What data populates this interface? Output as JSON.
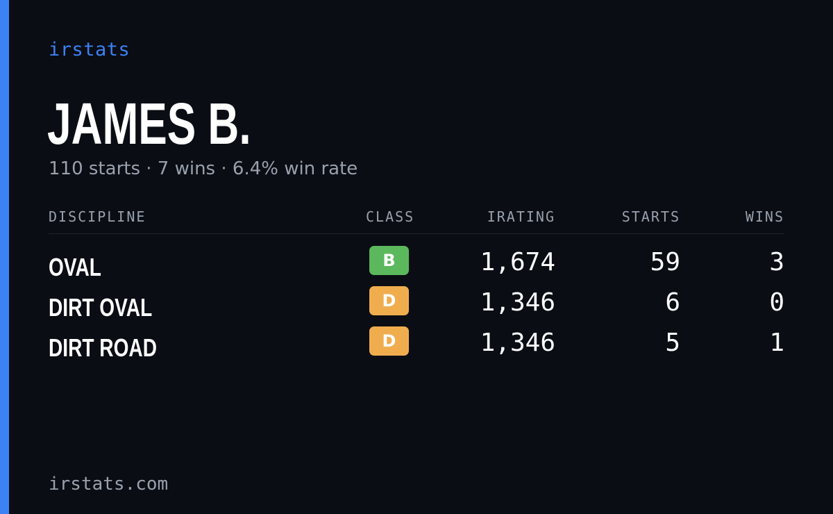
{
  "brand": "irstats",
  "driver": {
    "name": "JAMES B.",
    "summary": "110 starts · 7 wins · 6.4% win rate"
  },
  "table": {
    "headers": {
      "discipline": "DISCIPLINE",
      "class": "CLASS",
      "irating": "IRATING",
      "starts": "STARTS",
      "wins": "WINS"
    },
    "rows": [
      {
        "discipline": "OVAL",
        "class": "B",
        "class_color": "#5cb85c",
        "irating": "1,674",
        "starts": "59",
        "wins": "3"
      },
      {
        "discipline": "DIRT OVAL",
        "class": "D",
        "class_color": "#f0ad4e",
        "irating": "1,346",
        "starts": "6",
        "wins": "0"
      },
      {
        "discipline": "DIRT ROAD",
        "class": "D",
        "class_color": "#f0ad4e",
        "irating": "1,346",
        "starts": "5",
        "wins": "1"
      }
    ]
  },
  "footer": "irstats.com",
  "colors": {
    "accent": "#3b82f6",
    "background": "#0a0d14",
    "muted_text": "#99a1ad"
  }
}
